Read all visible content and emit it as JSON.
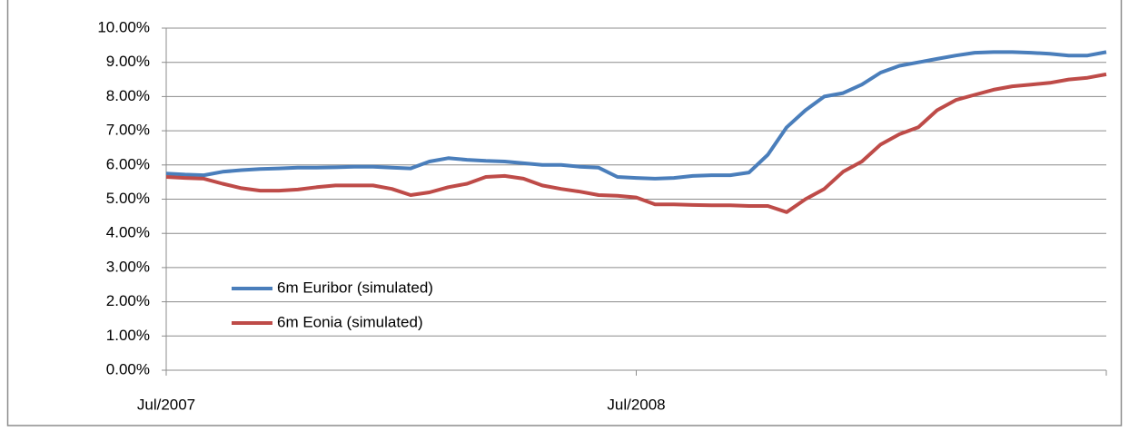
{
  "chart_data": {
    "type": "line",
    "categories": [
      "Jul/2007",
      null,
      null,
      null,
      null,
      null,
      null,
      null,
      null,
      null,
      null,
      null,
      null,
      null,
      null,
      null,
      null,
      null,
      null,
      null,
      null,
      null,
      null,
      null,
      null,
      "Jul/2008",
      null,
      null,
      null,
      null,
      null,
      null,
      null,
      null,
      null,
      null,
      null,
      null,
      null,
      null,
      null,
      null,
      null,
      null,
      null,
      null,
      null,
      null,
      null,
      null,
      null
    ],
    "series": [
      {
        "name": "6m Euribor (simulated)",
        "color": "#4a7ebb",
        "values": [
          5.75,
          5.72,
          5.7,
          5.8,
          5.85,
          5.88,
          5.9,
          5.92,
          5.92,
          5.93,
          5.95,
          5.95,
          5.92,
          5.9,
          6.1,
          6.2,
          6.15,
          6.12,
          6.1,
          6.05,
          6.0,
          6.0,
          5.95,
          5.92,
          5.65,
          5.62,
          5.6,
          5.62,
          5.68,
          5.7,
          5.7,
          5.78,
          6.3,
          7.1,
          7.6,
          8.0,
          8.1,
          8.35,
          8.7,
          8.9,
          9.0,
          9.1,
          9.2,
          9.28,
          9.3,
          9.3,
          9.28,
          9.25,
          9.2,
          9.2,
          9.3
        ]
      },
      {
        "name": "6m Eonia (simulated)",
        "color": "#be4b48",
        "values": [
          5.65,
          5.62,
          5.6,
          5.45,
          5.32,
          5.25,
          5.25,
          5.28,
          5.35,
          5.4,
          5.4,
          5.4,
          5.3,
          5.12,
          5.2,
          5.35,
          5.45,
          5.65,
          5.68,
          5.6,
          5.4,
          5.3,
          5.22,
          5.12,
          5.1,
          5.05,
          4.85,
          4.85,
          4.83,
          4.82,
          4.82,
          4.8,
          4.8,
          4.62,
          5.0,
          5.3,
          5.8,
          6.1,
          6.6,
          6.9,
          7.1,
          7.6,
          7.9,
          8.05,
          8.2,
          8.3,
          8.35,
          8.4,
          8.5,
          8.55,
          8.65
        ]
      }
    ],
    "ylim": [
      0,
      10
    ],
    "yticks": [
      {
        "value": 0,
        "label": "0.00%"
      },
      {
        "value": 1,
        "label": "1.00%"
      },
      {
        "value": 2,
        "label": "2.00%"
      },
      {
        "value": 3,
        "label": "3.00%"
      },
      {
        "value": 4,
        "label": "4.00%"
      },
      {
        "value": 5,
        "label": "5.00%"
      },
      {
        "value": 6,
        "label": "6.00%"
      },
      {
        "value": 7,
        "label": "7.00%"
      },
      {
        "value": 8,
        "label": "8.00%"
      },
      {
        "value": 9,
        "label": "9.00%"
      },
      {
        "value": 10,
        "label": "10.00%"
      }
    ],
    "grid": true
  }
}
